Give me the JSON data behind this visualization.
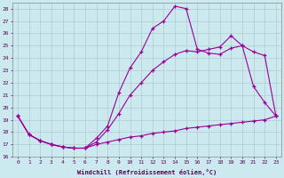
{
  "background_color": "#cde9f0",
  "grid_color": "#b0cccc",
  "line_color": "#990099",
  "xlabel": "Windchill (Refroidissement éolien,°C)",
  "xlim": [
    -0.5,
    23.5
  ],
  "ylim": [
    16.0,
    28.5
  ],
  "yticks": [
    16,
    17,
    18,
    19,
    20,
    21,
    22,
    23,
    24,
    25,
    26,
    27,
    28
  ],
  "xticks": [
    0,
    1,
    2,
    3,
    4,
    5,
    6,
    7,
    8,
    9,
    10,
    11,
    12,
    13,
    14,
    15,
    16,
    17,
    18,
    19,
    20,
    21,
    22,
    23
  ],
  "line1_x": [
    0,
    1,
    2,
    3,
    4,
    5,
    6,
    7,
    8,
    9,
    10,
    11,
    12,
    13,
    14,
    15,
    16,
    17,
    18,
    19,
    20,
    21,
    22,
    23
  ],
  "line1_y": [
    19.3,
    17.8,
    17.3,
    17.0,
    16.8,
    16.7,
    16.7,
    17.5,
    18.5,
    21.2,
    23.2,
    24.5,
    26.4,
    27.0,
    28.2,
    28.0,
    24.7,
    24.4,
    24.3,
    24.8,
    25.0,
    21.7,
    20.4,
    19.3
  ],
  "line2_x": [
    0,
    1,
    2,
    3,
    4,
    5,
    6,
    7,
    8,
    9,
    10,
    11,
    12,
    13,
    14,
    15,
    16,
    17,
    18,
    19,
    20,
    21,
    22,
    23
  ],
  "line2_y": [
    19.3,
    17.8,
    17.3,
    17.0,
    16.8,
    16.7,
    16.7,
    17.2,
    18.2,
    19.5,
    21.0,
    22.0,
    23.0,
    23.7,
    24.3,
    24.6,
    24.5,
    24.7,
    24.9,
    25.8,
    25.0,
    24.5,
    24.2,
    19.3
  ],
  "line3_x": [
    0,
    1,
    2,
    3,
    4,
    5,
    6,
    7,
    8,
    9,
    10,
    11,
    12,
    13,
    14,
    15,
    16,
    17,
    18,
    19,
    20,
    21,
    22,
    23
  ],
  "line3_y": [
    19.3,
    17.8,
    17.3,
    17.0,
    16.8,
    16.7,
    16.7,
    17.0,
    17.2,
    17.4,
    17.6,
    17.7,
    17.9,
    18.0,
    18.1,
    18.3,
    18.4,
    18.5,
    18.6,
    18.7,
    18.8,
    18.9,
    19.0,
    19.3
  ]
}
